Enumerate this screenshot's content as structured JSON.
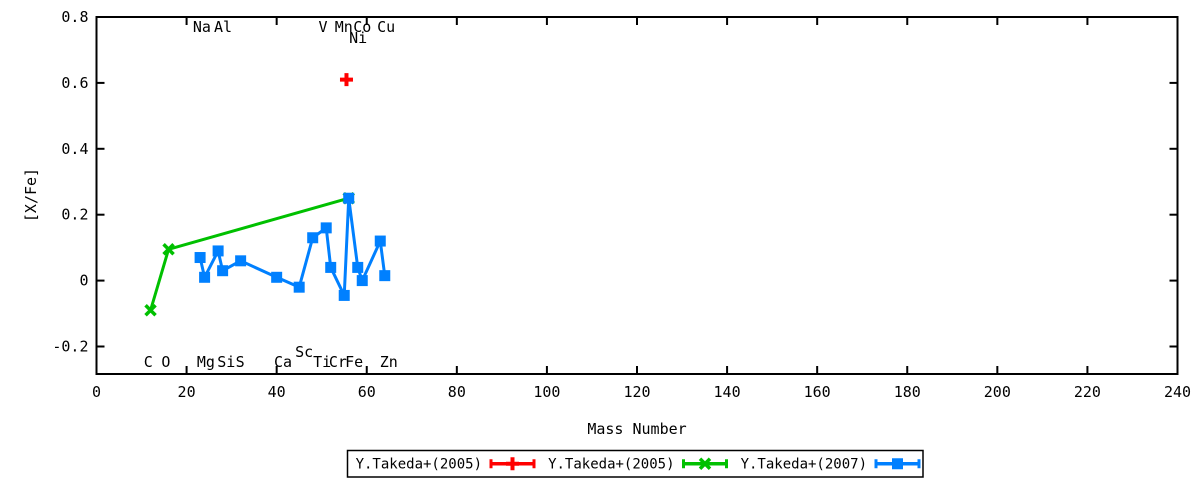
{
  "figure": {
    "background": "#ffffff",
    "axis_color": "#000000"
  },
  "chart_data": {
    "type": "line",
    "title": "",
    "xlabel": "Mass Number",
    "ylabel": "[X/Fe]",
    "xlim": [
      0,
      240
    ],
    "ylim": [
      -0.2835,
      0.8
    ],
    "xticks": [
      0,
      20,
      40,
      60,
      80,
      100,
      120,
      140,
      160,
      180,
      200,
      220,
      240
    ],
    "yticks": [
      -0.2,
      0,
      0.2,
      0.4,
      0.6,
      0.8
    ],
    "ytick_labels": [
      "-0.2",
      "0",
      "0.2",
      "0.4",
      "0.6",
      "0.8"
    ],
    "grid": false,
    "legend_position": "below-plot-boxed",
    "series": [
      {
        "name": "Y.Takeda+(2005)",
        "color": "#ff0000",
        "marker": "plus",
        "line": false,
        "points": [
          {
            "element": "Mn",
            "x": 55.5,
            "y": 0.61
          }
        ]
      },
      {
        "name": "Y.Takeda+(2005)",
        "color": "#00c000",
        "marker": "x",
        "line": true,
        "points": [
          {
            "element": "C",
            "x": 12,
            "y": -0.09
          },
          {
            "element": "O",
            "x": 16,
            "y": 0.095
          },
          {
            "element": "Fe",
            "x": 56,
            "y": 0.25
          }
        ]
      },
      {
        "name": "Y.Takeda+(2007)",
        "color": "#0080ff",
        "marker": "square",
        "line": true,
        "points": [
          {
            "element": "Na",
            "x": 23,
            "y": 0.07
          },
          {
            "element": "Mg",
            "x": 24,
            "y": 0.01
          },
          {
            "element": "Al",
            "x": 27,
            "y": 0.09
          },
          {
            "element": "Si",
            "x": 28,
            "y": 0.03
          },
          {
            "element": "S",
            "x": 32,
            "y": 0.06
          },
          {
            "element": "Ca",
            "x": 40,
            "y": 0.01
          },
          {
            "element": "Sc",
            "x": 45,
            "y": -0.02
          },
          {
            "element": "Ti",
            "x": 48,
            "y": 0.13
          },
          {
            "element": "V",
            "x": 51,
            "y": 0.16
          },
          {
            "element": "Cr",
            "x": 52,
            "y": 0.04
          },
          {
            "element": "Mn",
            "x": 55,
            "y": -0.045
          },
          {
            "element": "Fe",
            "x": 56,
            "y": 0.25
          },
          {
            "element": "Ni",
            "x": 58,
            "y": 0.04
          },
          {
            "element": "Co",
            "x": 59,
            "y": 0.0
          },
          {
            "element": "Cu",
            "x": 63,
            "y": 0.12
          },
          {
            "element": "Zn",
            "x": 64,
            "y": 0.015
          }
        ]
      }
    ],
    "annotations": [
      {
        "text": "Na",
        "x": 23.4,
        "row": "top"
      },
      {
        "text": "Al",
        "x": 28.1,
        "row": "top"
      },
      {
        "text": "V",
        "x": 50.3,
        "row": "top"
      },
      {
        "text": "Mn",
        "x": 54.9,
        "row": "top"
      },
      {
        "text": "Co",
        "x": 59.0,
        "row": "top"
      },
      {
        "text": "Cu",
        "x": 64.3,
        "row": "top"
      },
      {
        "text": "Ni",
        "x": 58.1,
        "row": "top-lower"
      },
      {
        "text": "C",
        "x": 11.5,
        "row": "bottom"
      },
      {
        "text": "O",
        "x": 15.4,
        "row": "bottom"
      },
      {
        "text": "Mg",
        "x": 24.3,
        "row": "bottom"
      },
      {
        "text": "Si",
        "x": 28.8,
        "row": "bottom"
      },
      {
        "text": "S",
        "x": 31.9,
        "row": "bottom"
      },
      {
        "text": "Ca",
        "x": 41.4,
        "row": "bottom"
      },
      {
        "text": "Sc",
        "x": 46.1,
        "row": "bottom-raised"
      },
      {
        "text": "Ti",
        "x": 50.1,
        "row": "bottom"
      },
      {
        "text": "Cr",
        "x": 53.6,
        "row": "bottom"
      },
      {
        "text": "Fe",
        "x": 57.2,
        "row": "bottom"
      },
      {
        "text": "Zn",
        "x": 64.9,
        "row": "bottom"
      }
    ],
    "legend_entries": [
      "Y.Takeda+(2005)",
      "Y.Takeda+(2005)",
      "Y.Takeda+(2007)"
    ]
  }
}
